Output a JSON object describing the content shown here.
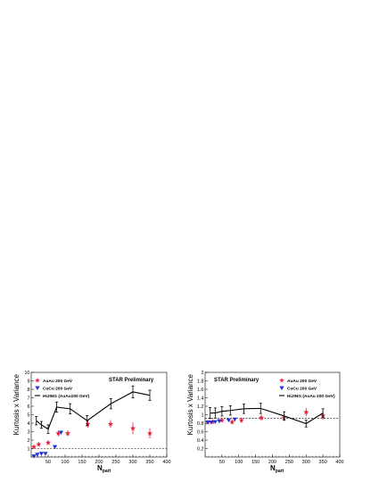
{
  "chart_data": [
    {
      "type": "scatter",
      "title": "",
      "annotation": "STAR Preliminary",
      "xlabel": "N",
      "xlabel_sub": "part",
      "ylabel": "Kurtosis x Variance",
      "xlim": [
        0,
        400
      ],
      "ylim": [
        0,
        10
      ],
      "xticks": [
        "50",
        "100",
        "150",
        "200",
        "250",
        "300",
        "350",
        "400"
      ],
      "yticks": [
        "1",
        "2",
        "3",
        "4",
        "5",
        "6",
        "7",
        "8",
        "9",
        "10"
      ],
      "reference_line": 1.0,
      "legend_position": "top-left",
      "series": [
        {
          "name": "AuAu 200 GeV",
          "marker": "star",
          "color": "#e8203a",
          "x": [
            8,
            22,
            50,
            80,
            108,
            167,
            234,
            300,
            350
          ],
          "y": [
            1.2,
            1.5,
            1.7,
            2.8,
            2.8,
            3.9,
            3.9,
            3.4,
            2.8
          ],
          "err": [
            0.15,
            0.2,
            0.25,
            0.35,
            0.35,
            0.45,
            0.45,
            0.7,
            0.6
          ]
        },
        {
          "name": "CuCu 200 GeV",
          "marker": "triangle-down",
          "color": "#1f2ed8",
          "x": [
            8,
            18,
            30,
            42,
            70,
            88
          ],
          "y": [
            0.1,
            0.3,
            0.4,
            0.4,
            1.2,
            2.9
          ],
          "err": [
            0.1,
            0.1,
            0.1,
            0.1,
            0.1,
            0.15
          ]
        },
        {
          "name": "HIJING (AuAu200 GeV)",
          "marker": "line",
          "color": "#000000",
          "x": [
            15,
            30,
            50,
            75,
            115,
            165,
            235,
            300,
            350
          ],
          "y": [
            4.3,
            3.8,
            3.3,
            5.9,
            5.7,
            4.3,
            6.3,
            7.7,
            7.3
          ],
          "err": [
            0.5,
            0.4,
            0.5,
            0.6,
            0.6,
            0.6,
            0.6,
            0.7,
            0.6
          ]
        }
      ]
    },
    {
      "type": "scatter",
      "title": "",
      "annotation": "STAR Preliminary",
      "xlabel": "N",
      "xlabel_sub": "part",
      "ylabel": "Kurtosis x Variance",
      "xlim": [
        0,
        400
      ],
      "ylim": [
        0,
        2
      ],
      "xticks": [
        "50",
        "100",
        "150",
        "200",
        "250",
        "300",
        "350",
        "400"
      ],
      "yticks": [
        "0.2",
        "0.4",
        "0.6",
        "0.8",
        "1",
        "1.2",
        "1.4",
        "1.6",
        "1.8",
        "2"
      ],
      "reference_line": 0.92,
      "legend_position": "top-right",
      "series": [
        {
          "name": "AuAu 200 GeV",
          "marker": "star",
          "color": "#e8203a",
          "x": [
            8,
            22,
            50,
            80,
            108,
            167,
            234,
            300,
            350
          ],
          "y": [
            0.82,
            0.83,
            0.87,
            0.83,
            0.87,
            0.93,
            0.93,
            1.06,
            0.98
          ],
          "err": [
            0.03,
            0.04,
            0.05,
            0.06,
            0.06,
            0.07,
            0.08,
            0.1,
            0.1
          ]
        },
        {
          "name": "CuCu 200 GeV",
          "marker": "triangle-down",
          "color": "#1f2ed8",
          "x": [
            8,
            18,
            30,
            42,
            70,
            88
          ],
          "y": [
            0.82,
            0.82,
            0.83,
            0.85,
            0.87,
            0.89
          ],
          "err": [
            0.03,
            0.03,
            0.03,
            0.03,
            0.03,
            0.03
          ]
        },
        {
          "name": "HiJING (AuAu 200 GeV)",
          "marker": "line",
          "color": "#000000",
          "x": [
            15,
            30,
            50,
            75,
            115,
            165,
            235,
            300,
            350
          ],
          "y": [
            1.04,
            1.04,
            1.08,
            1.1,
            1.14,
            1.15,
            0.97,
            0.79,
            1.04
          ],
          "err": [
            0.13,
            0.12,
            0.11,
            0.11,
            0.11,
            0.12,
            0.1,
            0.08,
            0.1
          ]
        }
      ]
    }
  ]
}
